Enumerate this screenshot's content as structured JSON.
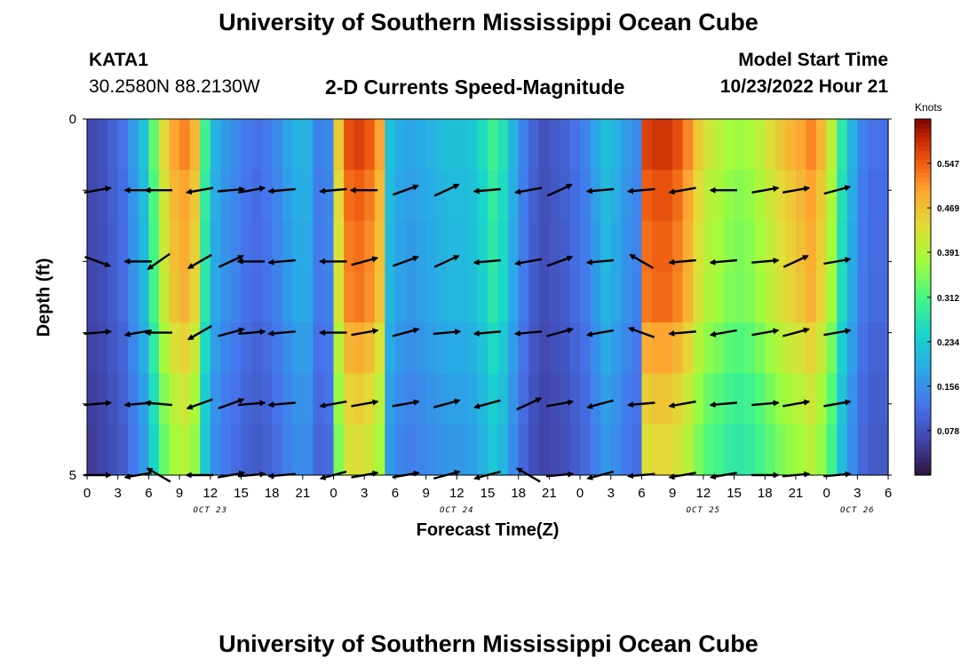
{
  "header": {
    "title": "University of Southern Mississippi Ocean Cube",
    "station": "KATA1",
    "coords": "30.2580N  88.2130W",
    "subtitle": "2-D Currents Speed-Magnitude",
    "model_start_label": "Model Start Time",
    "model_start_value": "10/23/2022 Hour 21"
  },
  "footer": {
    "title": "University of Southern Mississippi Ocean Cube"
  },
  "chart_data": {
    "type": "heatmap",
    "title": "2-D Currents Speed-Magnitude",
    "xlabel": "Forecast Time(Z)",
    "ylabel": "Depth (ft)",
    "colorbar_unit": "Knots",
    "colorbar_ticks": [
      "0.078",
      "0.156",
      "0.234",
      "0.312",
      "0.391",
      "0.469",
      "0.547"
    ],
    "colorbar_range": [
      0,
      0.625
    ],
    "x_tick_labels": [
      "0",
      "3",
      "6",
      "9",
      "12",
      "15",
      "18",
      "21",
      "0",
      "3",
      "6",
      "9",
      "12",
      "15",
      "18",
      "21",
      "0",
      "3",
      "6",
      "9",
      "12",
      "15",
      "18",
      "21",
      "0",
      "3",
      "6"
    ],
    "day_labels": [
      {
        "label": "OCT 23",
        "hour": 12
      },
      {
        "label": "OCT 24",
        "hour": 36
      },
      {
        "label": "OCT 25",
        "hour": 60
      },
      {
        "label": "OCT 26",
        "hour": 75
      }
    ],
    "x_range_hours": [
      0,
      78
    ],
    "y_tick_labels": [
      "0",
      "5"
    ],
    "y_range_ft": [
      0,
      5
    ],
    "depth_levels_ft": [
      0,
      1,
      2,
      3,
      4,
      5
    ],
    "speed_by_hour": [
      0.07,
      0.08,
      0.1,
      0.12,
      0.17,
      0.22,
      0.33,
      0.44,
      0.5,
      0.52,
      0.48,
      0.3,
      0.2,
      0.17,
      0.15,
      0.13,
      0.12,
      0.13,
      0.15,
      0.18,
      0.2,
      0.2,
      0.14,
      0.15,
      0.46,
      0.56,
      0.57,
      0.55,
      0.5,
      0.22,
      0.19,
      0.18,
      0.19,
      0.2,
      0.21,
      0.22,
      0.22,
      0.23,
      0.26,
      0.3,
      0.27,
      0.2,
      0.14,
      0.1,
      0.08,
      0.09,
      0.1,
      0.12,
      0.14,
      0.18,
      0.22,
      0.2,
      0.17,
      0.15,
      0.57,
      0.58,
      0.58,
      0.56,
      0.52,
      0.46,
      0.42,
      0.4,
      0.38,
      0.37,
      0.38,
      0.4,
      0.43,
      0.46,
      0.48,
      0.5,
      0.52,
      0.48,
      0.4,
      0.28,
      0.2,
      0.14,
      0.12,
      0.12
    ],
    "depth_factor": [
      1.0,
      0.96,
      0.94,
      0.93,
      0.86,
      0.8,
      0.76
    ],
    "arrow_hours": [
      1,
      5,
      7,
      11,
      14,
      16,
      19,
      24,
      27,
      31,
      35,
      39,
      43,
      46,
      50,
      54,
      58,
      62,
      66,
      69,
      73
    ],
    "arrow_direction_deg": [
      [
        10,
        180,
        180,
        190,
        5,
        10,
        185,
        185,
        180,
        20,
        25,
        185,
        190,
        25,
        185,
        185,
        190,
        180,
        10,
        10,
        15
      ],
      [
        340,
        180,
        215,
        210,
        25,
        180,
        185,
        180,
        15,
        20,
        25,
        185,
        190,
        20,
        185,
        150,
        185,
        185,
        5,
        25,
        10
      ],
      [
        5,
        190,
        180,
        210,
        15,
        5,
        185,
        180,
        10,
        15,
        5,
        185,
        185,
        15,
        190,
        160,
        185,
        190,
        10,
        15,
        10
      ],
      [
        5,
        185,
        175,
        200,
        20,
        5,
        185,
        190,
        10,
        10,
        15,
        195,
        25,
        10,
        195,
        185,
        190,
        185,
        5,
        10,
        10
      ],
      [
        0,
        190,
        150,
        180,
        10,
        5,
        185,
        195,
        10,
        10,
        15,
        195,
        150,
        5,
        195,
        185,
        190,
        190,
        0,
        5,
        5
      ]
    ]
  }
}
